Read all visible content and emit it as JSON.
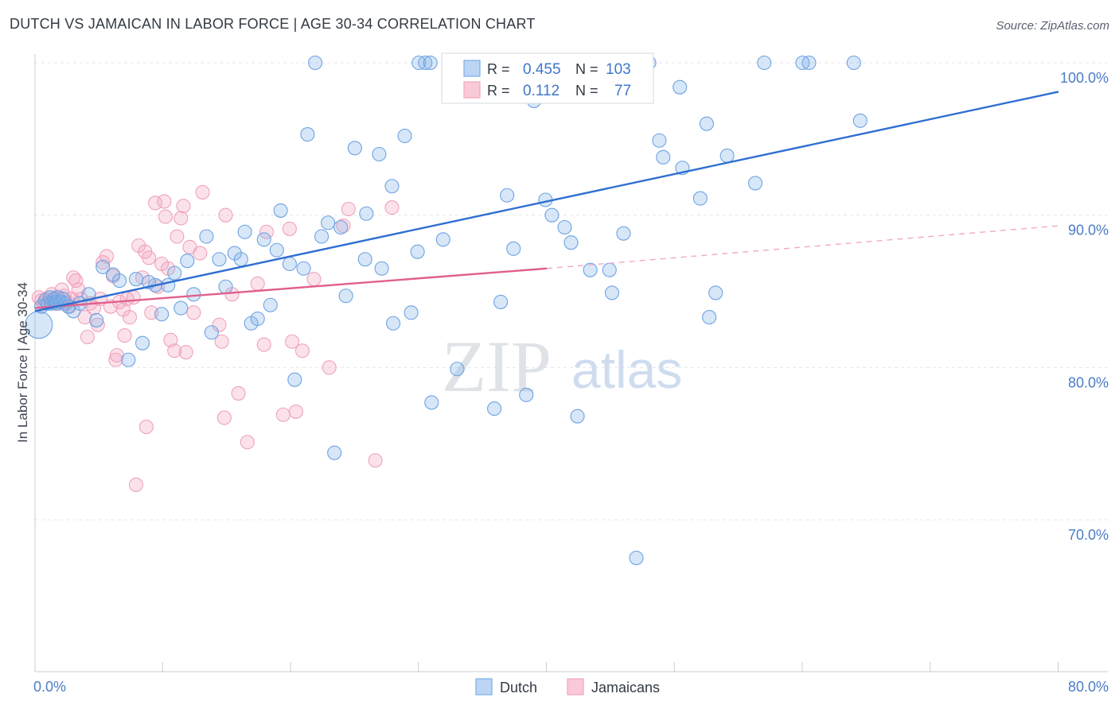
{
  "title": "DUTCH VS JAMAICAN IN LABOR FORCE | AGE 30-34 CORRELATION CHART",
  "source": "Source: ZipAtlas.com",
  "watermark": {
    "zip": "ZIP",
    "atlas": "atlas"
  },
  "legend_top": [
    {
      "r_label": "R =",
      "r_value": "0.455",
      "n_label": "N =",
      "n_value": "103"
    },
    {
      "r_label": "R =",
      "r_value": "0.112",
      "n_label": "N =",
      "n_value": "77"
    }
  ],
  "legend_bottom": [
    "Dutch",
    "Jamaicans"
  ],
  "chart_data": {
    "type": "scatter",
    "ylabel": "In Labor Force | Age 30-34",
    "x_tick_labels": [
      "0.0%",
      "80.0%"
    ],
    "y_tick_labels": [
      "100.0%",
      "90.0%",
      "80.0%",
      "70.0%"
    ],
    "xlim": [
      0,
      80
    ],
    "ylim": [
      60.5,
      101.5
    ],
    "grid": true,
    "colors": {
      "dutch": "#7aaee8",
      "dutch_line": "#2f6fd0",
      "jamaicans": "#f4a6bf",
      "jamaicans_line": "#e0608a"
    },
    "series": [
      {
        "name": "Dutch",
        "trend": {
          "x": [
            0,
            80
          ],
          "y": [
            83.7,
            98.1
          ]
        },
        "points": [
          [
            0.3,
            82.8
          ],
          [
            0.5,
            84.0
          ],
          [
            0.8,
            84.4
          ],
          [
            1.0,
            84.2
          ],
          [
            1.2,
            84.6
          ],
          [
            1.3,
            84.2
          ],
          [
            1.5,
            84.5
          ],
          [
            1.6,
            84.3
          ],
          [
            1.7,
            84.2
          ],
          [
            1.8,
            84.6
          ],
          [
            2.0,
            84.3
          ],
          [
            2.2,
            84.5
          ],
          [
            2.4,
            84.2
          ],
          [
            2.6,
            84.0
          ],
          [
            3.0,
            83.7
          ],
          [
            3.5,
            84.2
          ],
          [
            4.2,
            84.8
          ],
          [
            4.8,
            83.1
          ],
          [
            5.3,
            86.6
          ],
          [
            6.1,
            86.1
          ],
          [
            6.6,
            85.7
          ],
          [
            7.3,
            80.5
          ],
          [
            7.9,
            85.8
          ],
          [
            8.4,
            81.6
          ],
          [
            8.9,
            85.6
          ],
          [
            9.4,
            85.4
          ],
          [
            9.9,
            83.5
          ],
          [
            10.4,
            85.4
          ],
          [
            10.9,
            86.2
          ],
          [
            11.4,
            83.9
          ],
          [
            11.9,
            87.0
          ],
          [
            12.4,
            84.8
          ],
          [
            13.4,
            88.6
          ],
          [
            13.8,
            82.3
          ],
          [
            14.4,
            87.1
          ],
          [
            14.9,
            85.3
          ],
          [
            15.6,
            87.5
          ],
          [
            16.1,
            87.1
          ],
          [
            16.4,
            88.9
          ],
          [
            16.9,
            82.9
          ],
          [
            17.4,
            83.2
          ],
          [
            17.9,
            88.4
          ],
          [
            18.4,
            84.1
          ],
          [
            18.9,
            87.7
          ],
          [
            19.2,
            90.3
          ],
          [
            19.9,
            86.8
          ],
          [
            20.3,
            79.2
          ],
          [
            21.0,
            86.5
          ],
          [
            21.3,
            95.3
          ],
          [
            21.9,
            100.0
          ],
          [
            22.4,
            88.6
          ],
          [
            22.9,
            89.5
          ],
          [
            23.4,
            74.4
          ],
          [
            23.9,
            89.2
          ],
          [
            24.3,
            84.7
          ],
          [
            25.0,
            94.4
          ],
          [
            25.8,
            87.1
          ],
          [
            25.9,
            90.1
          ],
          [
            26.9,
            94.0
          ],
          [
            27.1,
            86.5
          ],
          [
            27.9,
            91.9
          ],
          [
            28.0,
            82.9
          ],
          [
            28.9,
            95.2
          ],
          [
            29.4,
            83.6
          ],
          [
            29.9,
            87.6
          ],
          [
            30.0,
            100.0
          ],
          [
            30.5,
            100.0
          ],
          [
            30.9,
            100.0
          ],
          [
            31.0,
            77.7
          ],
          [
            31.9,
            88.4
          ],
          [
            32.4,
            100.0
          ],
          [
            33.0,
            79.9
          ],
          [
            34.0,
            100.0
          ],
          [
            34.5,
            100.0
          ],
          [
            35.0,
            100.0
          ],
          [
            35.5,
            97.9
          ],
          [
            35.9,
            77.3
          ],
          [
            36.4,
            84.3
          ],
          [
            36.9,
            91.3
          ],
          [
            37.4,
            87.8
          ],
          [
            37.9,
            99.1
          ],
          [
            38.4,
            78.2
          ],
          [
            39.0,
            97.5
          ],
          [
            39.9,
            91.0
          ],
          [
            40.4,
            90.0
          ],
          [
            40.9,
            100.0
          ],
          [
            41.4,
            89.2
          ],
          [
            41.9,
            88.2
          ],
          [
            42.4,
            76.8
          ],
          [
            43.4,
            86.4
          ],
          [
            44.0,
            100.0
          ],
          [
            44.9,
            86.4
          ],
          [
            45.1,
            84.9
          ],
          [
            46.0,
            88.8
          ],
          [
            48.0,
            100.0
          ],
          [
            48.8,
            94.9
          ],
          [
            49.1,
            93.8
          ],
          [
            50.4,
            98.4
          ],
          [
            50.6,
            93.1
          ],
          [
            52.0,
            91.1
          ],
          [
            52.5,
            96.0
          ],
          [
            52.7,
            83.3
          ],
          [
            53.2,
            84.9
          ],
          [
            54.1,
            93.9
          ],
          [
            56.3,
            92.1
          ],
          [
            57.0,
            100.0
          ],
          [
            60.0,
            100.0
          ],
          [
            60.5,
            100.0
          ],
          [
            64.0,
            100.0
          ],
          [
            64.5,
            96.2
          ],
          [
            47.0,
            67.5
          ]
        ]
      },
      {
        "name": "Jamaicans",
        "trend": {
          "x": [
            0,
            40
          ],
          "y": [
            83.9,
            86.5
          ]
        },
        "trend_ext": {
          "x": [
            40,
            80
          ],
          "y": [
            86.5,
            89.3
          ]
        },
        "points": [
          [
            0.3,
            84.6
          ],
          [
            0.5,
            84.4
          ],
          [
            0.7,
            84.2
          ],
          [
            0.9,
            84.5
          ],
          [
            1.1,
            84.3
          ],
          [
            1.3,
            84.8
          ],
          [
            1.5,
            84.4
          ],
          [
            1.7,
            84.6
          ],
          [
            1.9,
            84.2
          ],
          [
            2.1,
            85.1
          ],
          [
            2.3,
            84.7
          ],
          [
            2.5,
            84.3
          ],
          [
            2.7,
            84.0
          ],
          [
            2.9,
            84.5
          ],
          [
            3.0,
            85.9
          ],
          [
            3.2,
            85.7
          ],
          [
            3.4,
            85.1
          ],
          [
            3.6,
            84.5
          ],
          [
            3.9,
            83.3
          ],
          [
            4.1,
            82.0
          ],
          [
            4.3,
            84.2
          ],
          [
            4.6,
            83.9
          ],
          [
            4.9,
            82.8
          ],
          [
            5.1,
            84.5
          ],
          [
            5.3,
            86.9
          ],
          [
            5.6,
            87.3
          ],
          [
            5.9,
            84.0
          ],
          [
            6.1,
            86.0
          ],
          [
            6.3,
            80.5
          ],
          [
            6.4,
            80.8
          ],
          [
            6.6,
            84.3
          ],
          [
            6.9,
            83.8
          ],
          [
            7.0,
            82.1
          ],
          [
            7.2,
            84.5
          ],
          [
            7.4,
            83.3
          ],
          [
            7.7,
            84.6
          ],
          [
            7.9,
            72.3
          ],
          [
            8.1,
            88.0
          ],
          [
            8.4,
            85.9
          ],
          [
            8.6,
            87.6
          ],
          [
            8.7,
            76.1
          ],
          [
            8.9,
            87.2
          ],
          [
            9.1,
            83.6
          ],
          [
            9.4,
            90.8
          ],
          [
            9.6,
            85.3
          ],
          [
            9.9,
            86.8
          ],
          [
            10.1,
            90.9
          ],
          [
            10.2,
            89.9
          ],
          [
            10.4,
            86.5
          ],
          [
            10.6,
            81.8
          ],
          [
            10.9,
            81.1
          ],
          [
            11.1,
            88.6
          ],
          [
            11.4,
            89.8
          ],
          [
            11.6,
            90.6
          ],
          [
            11.8,
            81.0
          ],
          [
            12.1,
            87.9
          ],
          [
            12.4,
            83.6
          ],
          [
            12.9,
            87.5
          ],
          [
            13.1,
            91.5
          ],
          [
            14.4,
            82.8
          ],
          [
            14.6,
            81.7
          ],
          [
            14.8,
            76.7
          ],
          [
            14.9,
            90.0
          ],
          [
            15.4,
            84.8
          ],
          [
            15.9,
            78.3
          ],
          [
            16.6,
            75.1
          ],
          [
            17.4,
            85.5
          ],
          [
            17.9,
            81.5
          ],
          [
            18.1,
            88.9
          ],
          [
            19.4,
            76.9
          ],
          [
            19.9,
            89.1
          ],
          [
            20.1,
            81.7
          ],
          [
            20.4,
            77.1
          ],
          [
            20.9,
            81.1
          ],
          [
            21.8,
            85.8
          ],
          [
            23.0,
            80.0
          ],
          [
            24.1,
            89.3
          ],
          [
            24.5,
            90.4
          ],
          [
            26.6,
            73.9
          ],
          [
            27.9,
            90.5
          ]
        ]
      }
    ]
  }
}
